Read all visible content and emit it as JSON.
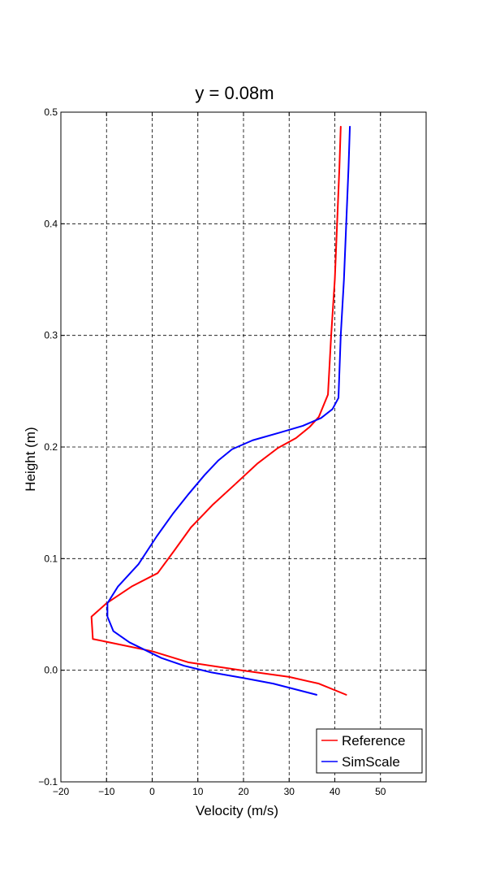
{
  "chart_data": {
    "type": "line",
    "title": "y = 0.08m",
    "xlabel": "Velocity (m/s)",
    "ylabel": "Height (m)",
    "xlim": [
      -20,
      60
    ],
    "ylim": [
      -0.1,
      0.5
    ],
    "x_ticks": [
      -20,
      -10,
      0,
      10,
      20,
      30,
      40,
      50
    ],
    "x_tick_labels": [
      "−20",
      "−10",
      "0",
      "10",
      "20",
      "30",
      "40",
      "50"
    ],
    "y_ticks": [
      -0.1,
      0.0,
      0.1,
      0.2,
      0.3,
      0.4,
      0.5
    ],
    "y_tick_labels": [
      "−0.1",
      "0.0",
      "0.1",
      "0.2",
      "0.3",
      "0.4",
      "0.5"
    ],
    "grid": true,
    "legend_position": "bottom-right",
    "series": [
      {
        "name": "Reference",
        "color": "#ff0000",
        "points": [
          [
            42.5,
            -0.022
          ],
          [
            36.5,
            -0.012
          ],
          [
            30,
            -0.006
          ],
          [
            20,
            -0.0003
          ],
          [
            8,
            0.007
          ],
          [
            0,
            0.017
          ],
          [
            -13,
            0.028
          ],
          [
            -13.3,
            0.048
          ],
          [
            -10,
            0.06
          ],
          [
            -4.5,
            0.075
          ],
          [
            1.2,
            0.087
          ],
          [
            4.8,
            0.107
          ],
          [
            8.5,
            0.128
          ],
          [
            13.2,
            0.148
          ],
          [
            18,
            0.166
          ],
          [
            23,
            0.185
          ],
          [
            27.5,
            0.199
          ],
          [
            31.5,
            0.208
          ],
          [
            34.5,
            0.218
          ],
          [
            36.5,
            0.227
          ],
          [
            38.5,
            0.247
          ],
          [
            39.2,
            0.3
          ],
          [
            40,
            0.35
          ],
          [
            40.5,
            0.4
          ],
          [
            41,
            0.45
          ],
          [
            41.3,
            0.487
          ]
        ]
      },
      {
        "name": "SimScale",
        "color": "#0000ff",
        "points": [
          [
            36,
            -0.022
          ],
          [
            26.5,
            -0.012
          ],
          [
            20,
            -0.007
          ],
          [
            13,
            -0.002
          ],
          [
            7,
            0.004
          ],
          [
            2,
            0.011
          ],
          [
            -1,
            0.017
          ],
          [
            -5,
            0.025
          ],
          [
            -8.5,
            0.035
          ],
          [
            -9.8,
            0.048
          ],
          [
            -9.8,
            0.06
          ],
          [
            -7.5,
            0.075
          ],
          [
            -3,
            0.095
          ],
          [
            1,
            0.12
          ],
          [
            4.5,
            0.14
          ],
          [
            8,
            0.158
          ],
          [
            11.5,
            0.175
          ],
          [
            14.5,
            0.188
          ],
          [
            17.5,
            0.198
          ],
          [
            22,
            0.206
          ],
          [
            28,
            0.213
          ],
          [
            33,
            0.219
          ],
          [
            37,
            0.226
          ],
          [
            39.5,
            0.234
          ],
          [
            40.8,
            0.244
          ],
          [
            41.3,
            0.3
          ],
          [
            42,
            0.35
          ],
          [
            42.5,
            0.4
          ],
          [
            43,
            0.45
          ],
          [
            43.3,
            0.487
          ]
        ]
      }
    ]
  }
}
